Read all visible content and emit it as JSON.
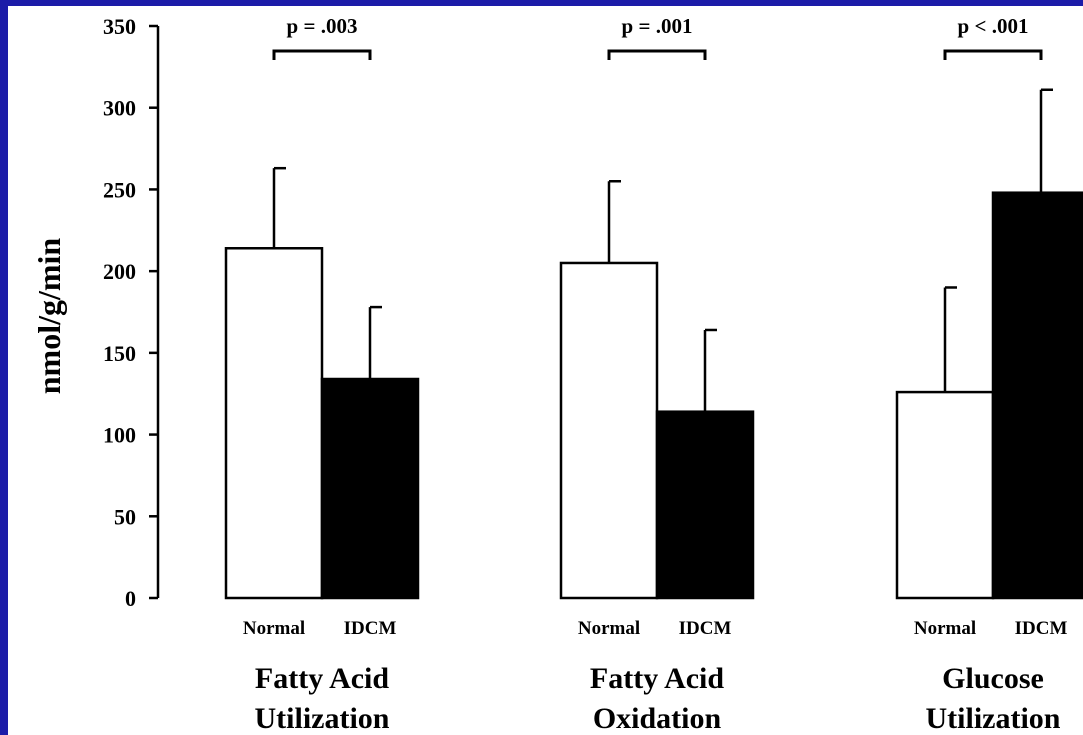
{
  "colors": {
    "frame": "#1c1ca8",
    "panel": "#ffffff",
    "normal_fill": "#ffffff",
    "idcm_fill": "#000000",
    "ink": "#000000"
  },
  "chart_data": {
    "type": "bar",
    "ylabel": "nmol/g/min",
    "ylim": [
      0,
      350
    ],
    "yticks": [
      0,
      50,
      100,
      150,
      200,
      250,
      300,
      350
    ],
    "series_labels": [
      "Normal",
      "IDCM"
    ],
    "groups": [
      {
        "label_line1": "Fatty Acid",
        "label_line2": "Utilization",
        "p_value": "p = .003",
        "bars": [
          {
            "name": "Normal",
            "value": 214,
            "error": 49
          },
          {
            "name": "IDCM",
            "value": 134,
            "error": 44
          }
        ]
      },
      {
        "label_line1": "Fatty Acid",
        "label_line2": "Oxidation",
        "p_value": "p = .001",
        "bars": [
          {
            "name": "Normal",
            "value": 205,
            "error": 50
          },
          {
            "name": "IDCM",
            "value": 114,
            "error": 50
          }
        ]
      },
      {
        "label_line1": "Glucose",
        "label_line2": "Utilization",
        "p_value": "p < .001",
        "bars": [
          {
            "name": "Normal",
            "value": 126,
            "error": 64
          },
          {
            "name": "IDCM",
            "value": 248,
            "error": 63
          }
        ]
      }
    ]
  }
}
